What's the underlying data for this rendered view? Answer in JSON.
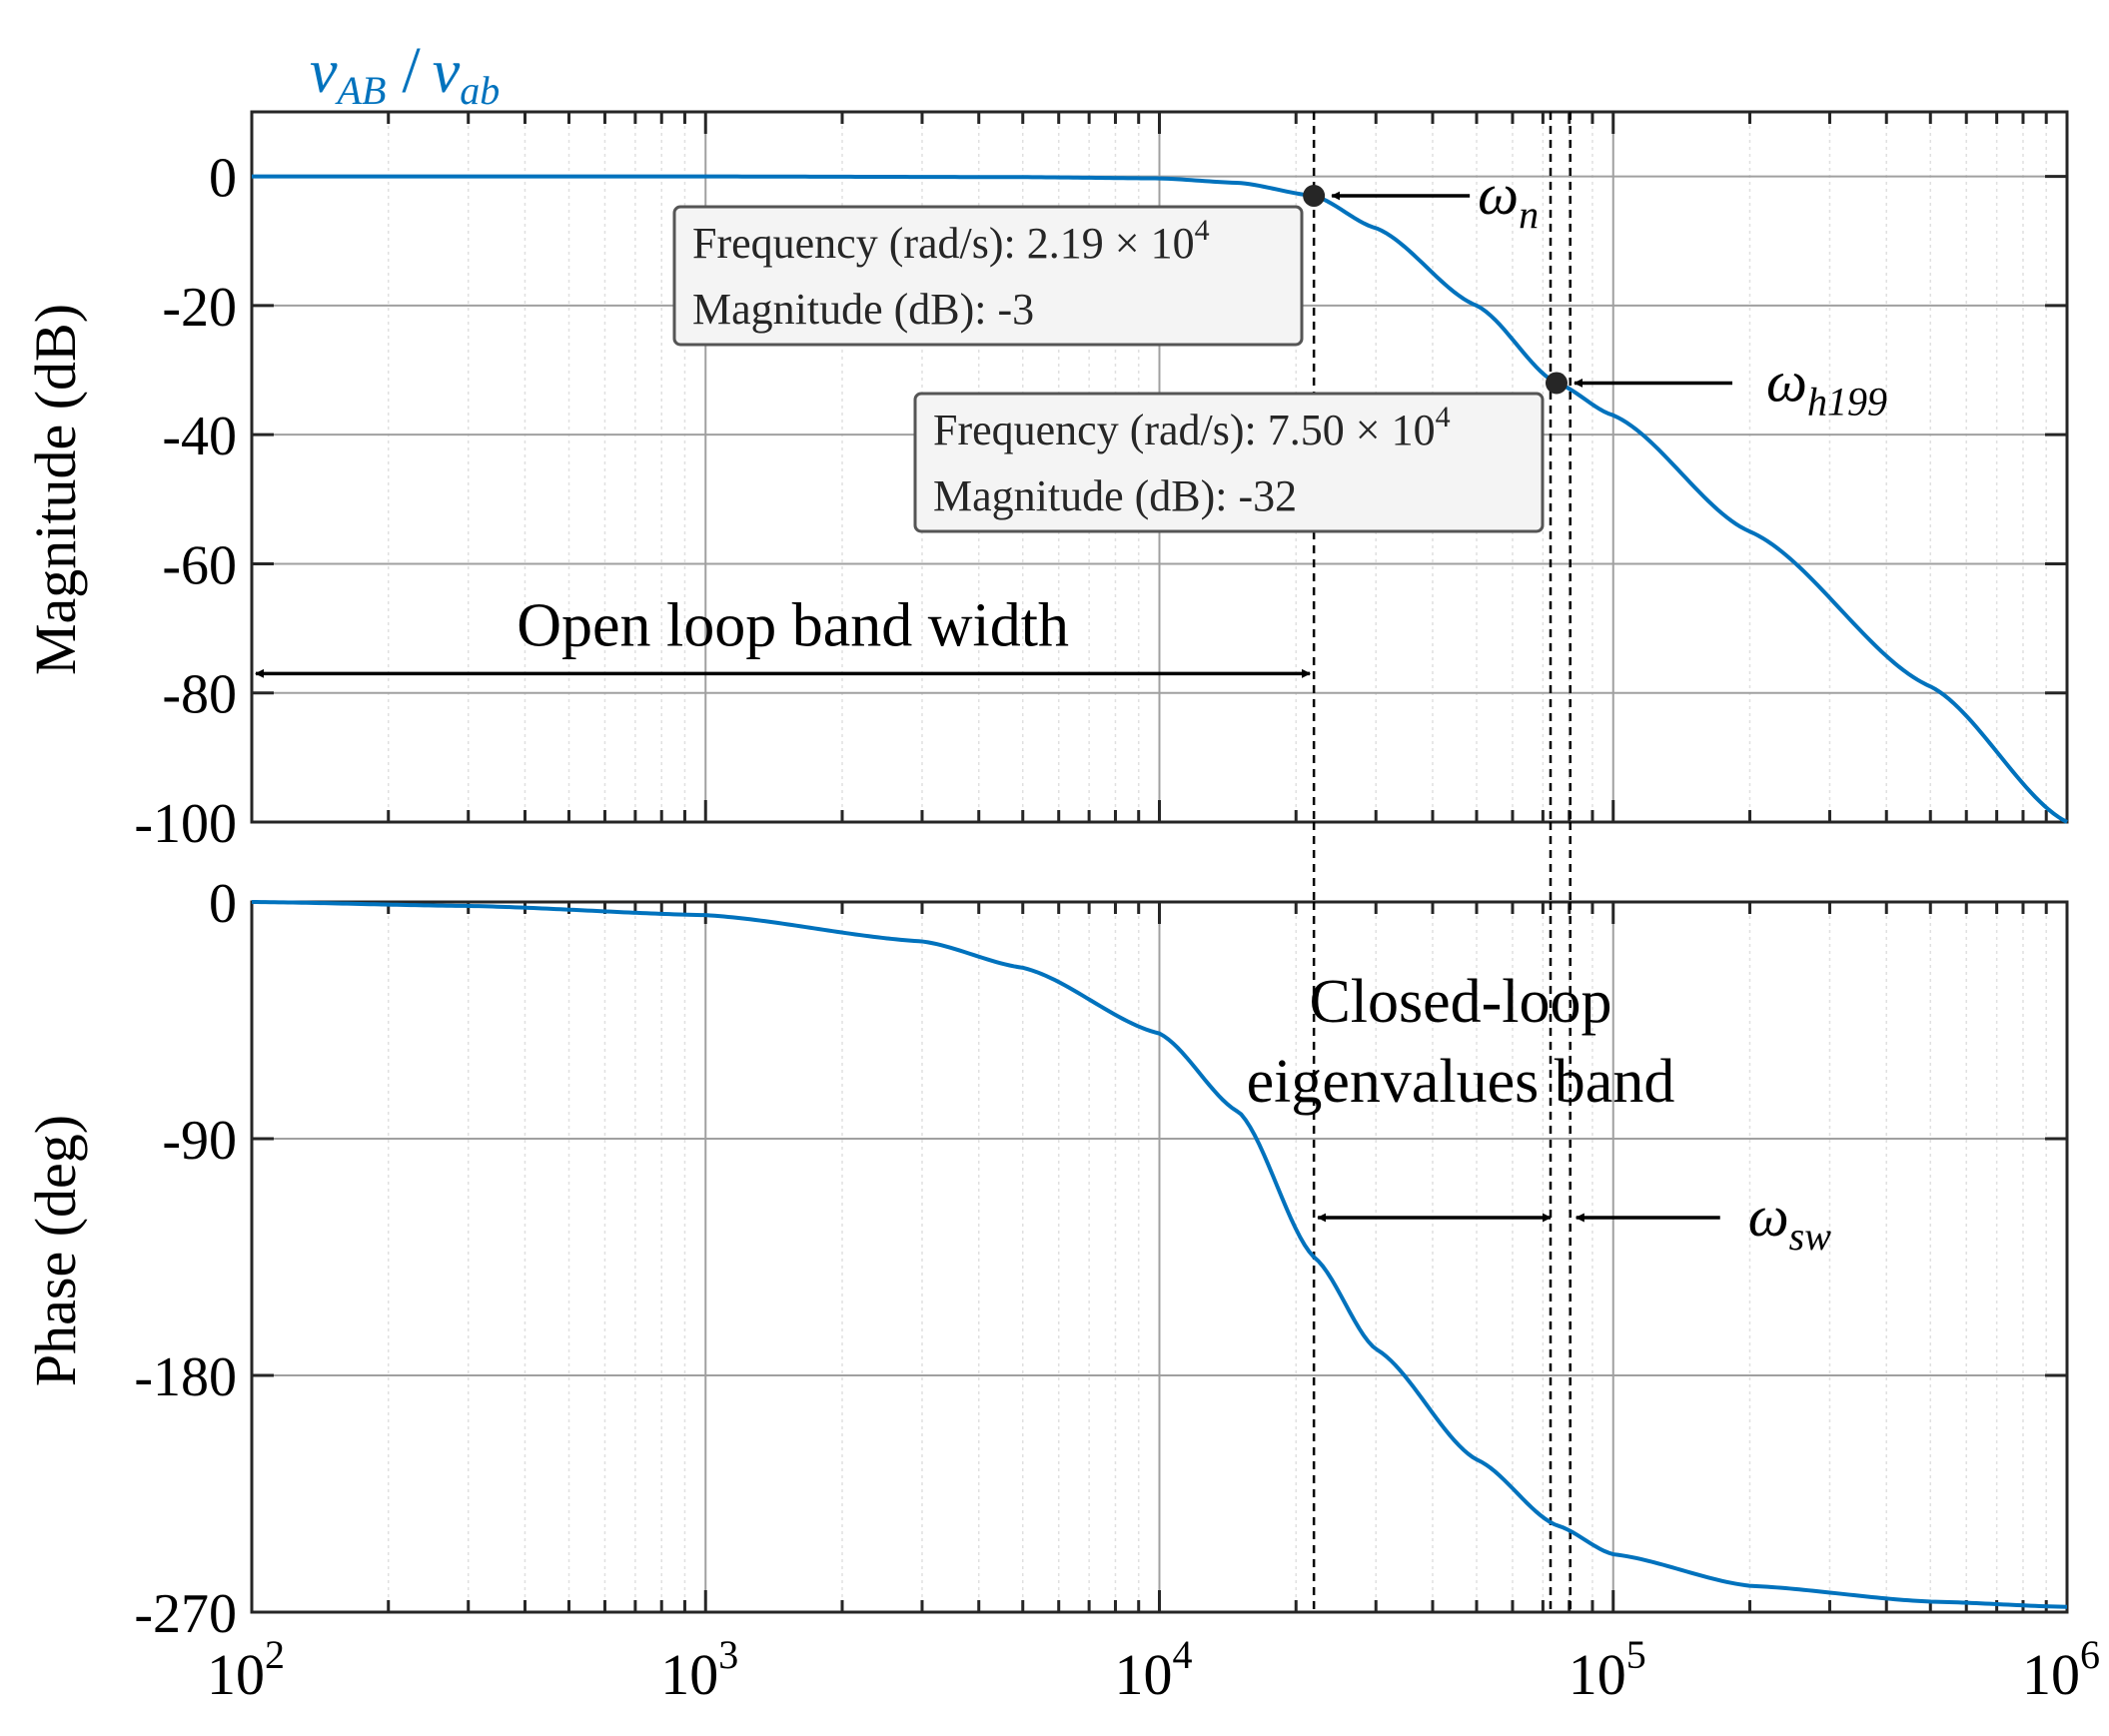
{
  "colors": {
    "curve": "#0072BD",
    "axis": "#262626",
    "grid_major": "#a0a0a0",
    "grid_minor": "#e0e0e0",
    "box_border": "#555555",
    "box_fill": "#f4f4f4",
    "text": "#000000"
  },
  "chart_data": [
    {
      "type": "line",
      "panel": "magnitude",
      "title": {
        "num": "v",
        "num_sub": "AB",
        "slash": "/",
        "den": "v",
        "den_sub": "ab"
      },
      "ylabel": "Magnitude (dB)",
      "x_scale": "log",
      "xlim": [
        100,
        1000000
      ],
      "ylim": [
        -100,
        10
      ],
      "yticks": [
        "0",
        "-20",
        "-40",
        "-60",
        "-80",
        "-100"
      ],
      "ytick_values": [
        0,
        -20,
        -40,
        -60,
        -80,
        -100
      ],
      "grid": true,
      "series": [
        {
          "x": [
            100,
            1000,
            5000,
            10000,
            15000,
            21900,
            30000,
            50000,
            75000,
            100000,
            200000,
            500000,
            1000000
          ],
          "y": [
            0,
            0,
            -0.1,
            -0.3,
            -1.0,
            -3,
            -8,
            -20,
            -32,
            -37,
            -55,
            -79,
            -100
          ]
        }
      ],
      "markers": [
        {
          "x": 21900,
          "y": -3,
          "label": "ω",
          "label_sub": "n",
          "datatip": {
            "line1_prefix": "Frequency (rad/s): ",
            "line1_base": "2.19 × 10",
            "line1_exp": "4",
            "line2": "Magnitude (dB): -3"
          }
        },
        {
          "x": 75000,
          "y": -32,
          "label": "ω",
          "label_sub": "h199",
          "datatip": {
            "line1_prefix": "Frequency (rad/s): ",
            "line1_base": "7.50 × 10",
            "line1_exp": "4",
            "line2": "Magnitude (dB): -32"
          }
        }
      ],
      "annotation": {
        "text": "Open loop band width",
        "x_from": 100,
        "x_to": 21900,
        "y": -77
      }
    },
    {
      "type": "line",
      "panel": "phase",
      "ylabel": "Phase (deg)",
      "x_scale": "log",
      "xlim": [
        100,
        1000000
      ],
      "ylim": [
        -270,
        0
      ],
      "yticks": [
        "0",
        "-90",
        "-180",
        "-270"
      ],
      "ytick_values": [
        0,
        -90,
        -180,
        -270
      ],
      "xticks": [
        {
          "base": "10",
          "exp": "2"
        },
        {
          "base": "10",
          "exp": "3"
        },
        {
          "base": "10",
          "exp": "4"
        },
        {
          "base": "10",
          "exp": "5"
        },
        {
          "base": "10",
          "exp": "6"
        }
      ],
      "xtick_values": [
        100,
        1000,
        10000,
        100000,
        1000000
      ],
      "grid": true,
      "series": [
        {
          "x": [
            100,
            300,
            1000,
            3000,
            5000,
            10000,
            15000,
            21900,
            30000,
            50000,
            75000,
            100000,
            200000,
            500000,
            1000000
          ],
          "y": [
            0,
            -1.5,
            -5,
            -15,
            -25,
            -50,
            -80,
            -135,
            -170,
            -212,
            -237,
            -248,
            -260,
            -266,
            -268
          ]
        }
      ],
      "annotation": {
        "text_line1": "Closed-loop",
        "text_line2": "eigenvalues band",
        "x_from": 21900,
        "x_to": 75000,
        "y": -120,
        "label": "ω",
        "label_sub": "sw",
        "label_x": 78000
      }
    }
  ]
}
